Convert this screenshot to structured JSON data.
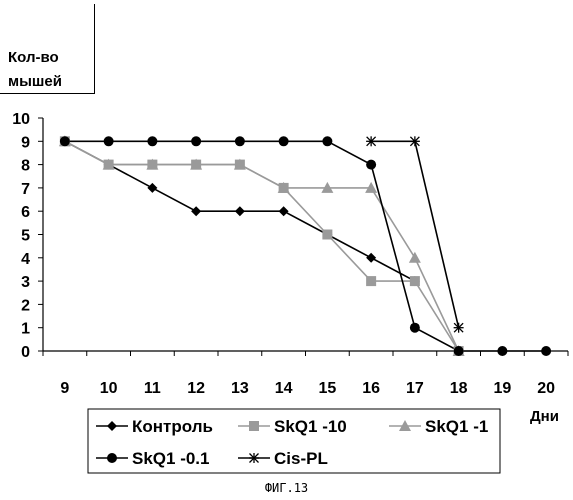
{
  "chart_data": {
    "type": "line",
    "ylabel": "Кол-во мышей",
    "xlabel": "Дни",
    "x": [
      9,
      10,
      11,
      12,
      13,
      14,
      15,
      16,
      17,
      18,
      19,
      20
    ],
    "ylim": [
      0,
      10
    ],
    "yticks": [
      0,
      1,
      2,
      3,
      4,
      5,
      6,
      7,
      8,
      9,
      10
    ],
    "grid": false,
    "legend_position": "bottom",
    "series": [
      {
        "name": "Контроль",
        "marker": "diamond",
        "color": "#000000",
        "points": [
          [
            9,
            9
          ],
          [
            10,
            8
          ],
          [
            11,
            7
          ],
          [
            12,
            6
          ],
          [
            13,
            6
          ],
          [
            14,
            6
          ],
          [
            15,
            5
          ],
          [
            16,
            4
          ],
          [
            17,
            3
          ]
        ]
      },
      {
        "name": "SkQ1 -10",
        "marker": "square",
        "color": "#9a9a9a",
        "points": [
          [
            9,
            9
          ],
          [
            10,
            8
          ],
          [
            11,
            8
          ],
          [
            12,
            8
          ],
          [
            13,
            8
          ],
          [
            14,
            7
          ],
          [
            15,
            5
          ],
          [
            16,
            3
          ],
          [
            17,
            3
          ],
          [
            18,
            0
          ]
        ]
      },
      {
        "name": "SkQ1 -1",
        "marker": "triangle",
        "color": "#9a9a9a",
        "points": [
          [
            9,
            9
          ],
          [
            10,
            8
          ],
          [
            11,
            8
          ],
          [
            12,
            8
          ],
          [
            13,
            8
          ],
          [
            14,
            7
          ],
          [
            15,
            7
          ],
          [
            16,
            7
          ],
          [
            17,
            4
          ],
          [
            18,
            0
          ]
        ]
      },
      {
        "name": "SkQ1 -0.1",
        "marker": "circle",
        "color": "#000000",
        "points": [
          [
            9,
            9
          ],
          [
            10,
            9
          ],
          [
            11,
            9
          ],
          [
            12,
            9
          ],
          [
            13,
            9
          ],
          [
            14,
            9
          ],
          [
            15,
            9
          ],
          [
            16,
            8
          ],
          [
            17,
            1
          ],
          [
            18,
            0
          ],
          [
            19,
            0
          ],
          [
            20,
            0
          ]
        ]
      },
      {
        "name": "Cis-PL",
        "marker": "star",
        "color": "#000000",
        "points": [
          [
            16,
            9
          ],
          [
            17,
            9
          ],
          [
            18,
            1
          ]
        ]
      }
    ]
  },
  "caption": "ФИГ.13"
}
